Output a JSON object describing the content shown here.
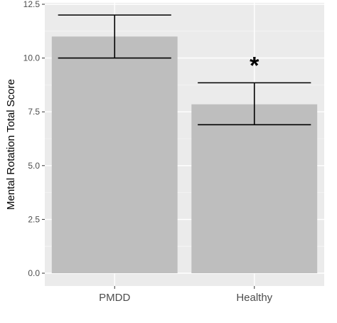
{
  "chart_data": {
    "type": "bar",
    "title": "",
    "xlabel": "",
    "ylabel": "Mental Rotation Total Score",
    "categories": [
      "PMDD",
      "Healthy"
    ],
    "values": [
      11.0,
      7.85
    ],
    "error_bars": [
      {
        "low": 10.0,
        "high": 12.0
      },
      {
        "low": 6.9,
        "high": 8.85
      }
    ],
    "ylim": [
      0,
      12.5
    ],
    "yticks": [
      "0.0",
      "2.5",
      "5.0",
      "7.5",
      "10.0",
      "12.5"
    ],
    "annotations": [
      {
        "category": "Healthy",
        "text": "*"
      }
    ],
    "grid": true,
    "legend": "none",
    "colors": {
      "panel_bg": "#ebebeb",
      "grid_major": "#ffffff",
      "grid_minor": "#f5f5f5",
      "bar_fill": "#bebebe",
      "error_bar": "#000000",
      "tick_text": "#4d4d4d"
    }
  }
}
